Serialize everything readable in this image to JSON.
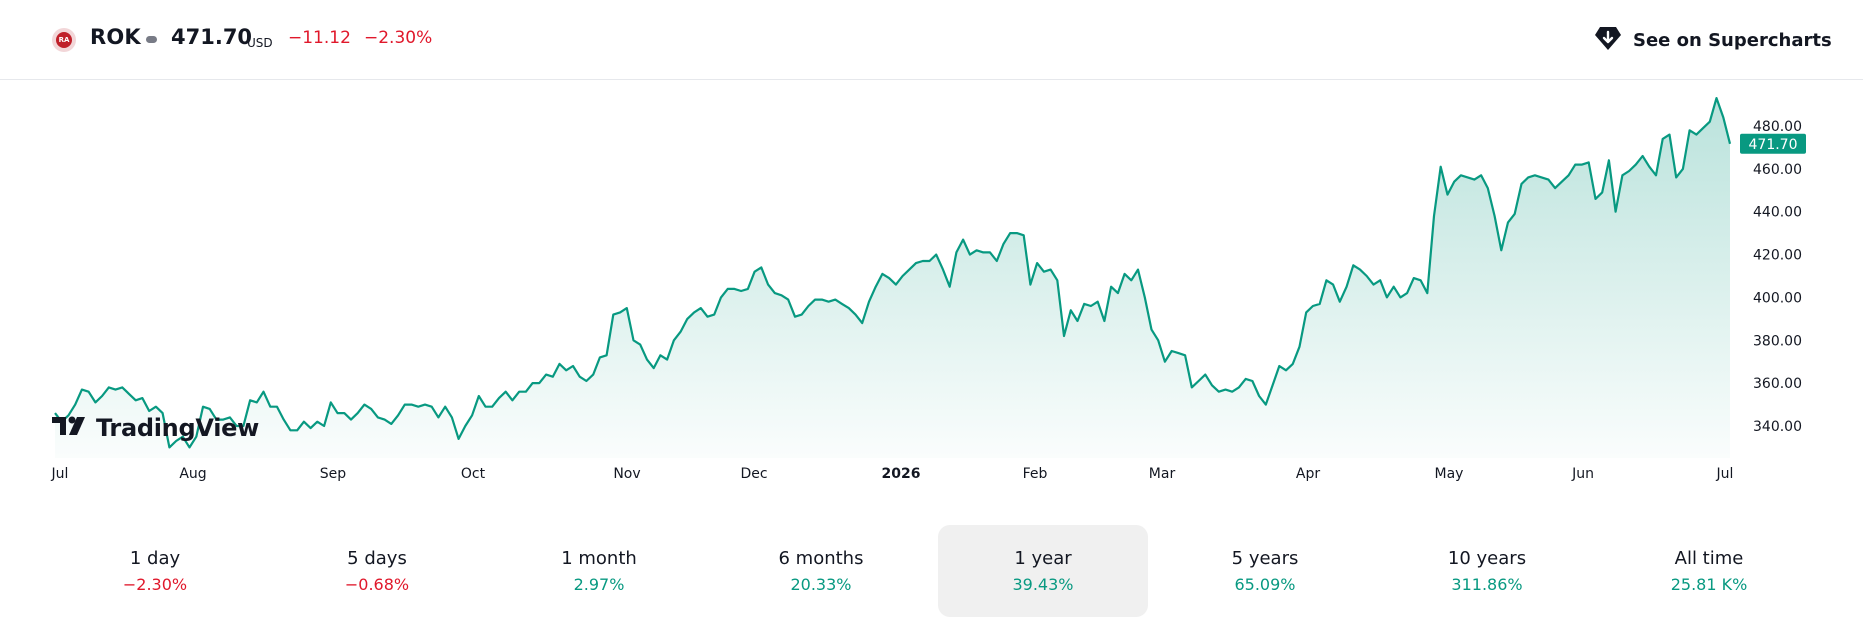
{
  "header": {
    "logo_text": "RA",
    "symbol": "ROK",
    "price": "471.70",
    "currency": "USD",
    "change": "−11.12",
    "change_pct": "−2.30%",
    "supercharts_label": "See on Supercharts"
  },
  "brand": {
    "name": "TradingView"
  },
  "colors": {
    "line": "#089981",
    "negative": "#e0182b",
    "positive": "#089981"
  },
  "chart_data": {
    "type": "area",
    "x_tick_labels": [
      "Jul",
      "Aug",
      "Sep",
      "Oct",
      "Nov",
      "Dec",
      "2026",
      "Feb",
      "Mar",
      "Apr",
      "May",
      "Jun",
      "Jul"
    ],
    "y_tick_labels": [
      "480.00",
      "460.00",
      "440.00",
      "420.00",
      "400.00",
      "380.00",
      "360.00",
      "340.00"
    ],
    "ylim": [
      328,
      495
    ],
    "last_price_label": "471.70",
    "series": [
      {
        "values": [
          346,
          342,
          345,
          350,
          357,
          356,
          351,
          354,
          358,
          357,
          358,
          355,
          352,
          353,
          347,
          349,
          346,
          330,
          333,
          335,
          330,
          335,
          349,
          348,
          343,
          343,
          344,
          340,
          340,
          352,
          351,
          356,
          349,
          349,
          343,
          338,
          338,
          342,
          339,
          342,
          340,
          351,
          346,
          346,
          343,
          346,
          350,
          348,
          344,
          343,
          341,
          345,
          350,
          350,
          349,
          350,
          349,
          344,
          349,
          344,
          334,
          340,
          345,
          354,
          349,
          349,
          353,
          356,
          352,
          356,
          356,
          360,
          360,
          364,
          363,
          369,
          366,
          368,
          363,
          361,
          364,
          372,
          373,
          392,
          393,
          395,
          380,
          378,
          371,
          367,
          373,
          371,
          380,
          384,
          390,
          393,
          395,
          391,
          392,
          400,
          404,
          404,
          403,
          404,
          412,
          414,
          406,
          402,
          401,
          399,
          391,
          392,
          396,
          399,
          399,
          398,
          399,
          397,
          395,
          392,
          388,
          398,
          405,
          411,
          409,
          406,
          410,
          413,
          416,
          417,
          417,
          420,
          413,
          405,
          421,
          427,
          420,
          422,
          421,
          421,
          417,
          425,
          430,
          430,
          429,
          406,
          416,
          412,
          413,
          408,
          382,
          394,
          389,
          397,
          396,
          398,
          389,
          405,
          402,
          411,
          408,
          413,
          400,
          385,
          380,
          370,
          375,
          374,
          373,
          358,
          361,
          364,
          359,
          356,
          357,
          356,
          358,
          362,
          361,
          354,
          350,
          359,
          368,
          366,
          369,
          377,
          393,
          396,
          397,
          408,
          406,
          398,
          405,
          415,
          413,
          410,
          406,
          408,
          400,
          405,
          400,
          402,
          409,
          408,
          402,
          438,
          461,
          448,
          454,
          457,
          456,
          455,
          457,
          451,
          438,
          422,
          435,
          439,
          453,
          456,
          457,
          456,
          455,
          451,
          454,
          457,
          462,
          462,
          463,
          446,
          449,
          464,
          440,
          457,
          459,
          462,
          466,
          461,
          457,
          474,
          476,
          456,
          460,
          478,
          476,
          479,
          482,
          493,
          484,
          471.7
        ]
      }
    ]
  },
  "periods": [
    {
      "label": "1 day",
      "value": "−2.30%",
      "tone": "neg"
    },
    {
      "label": "5 days",
      "value": "−0.68%",
      "tone": "neg"
    },
    {
      "label": "1 month",
      "value": "2.97%",
      "tone": "pos"
    },
    {
      "label": "6 months",
      "value": "20.33%",
      "tone": "pos"
    },
    {
      "label": "1 year",
      "value": "39.43%",
      "tone": "pos",
      "active": true
    },
    {
      "label": "5 years",
      "value": "65.09%",
      "tone": "pos"
    },
    {
      "label": "10 years",
      "value": "311.86%",
      "tone": "pos"
    },
    {
      "label": "All time",
      "value": "25.81 K%",
      "tone": "pos"
    }
  ]
}
